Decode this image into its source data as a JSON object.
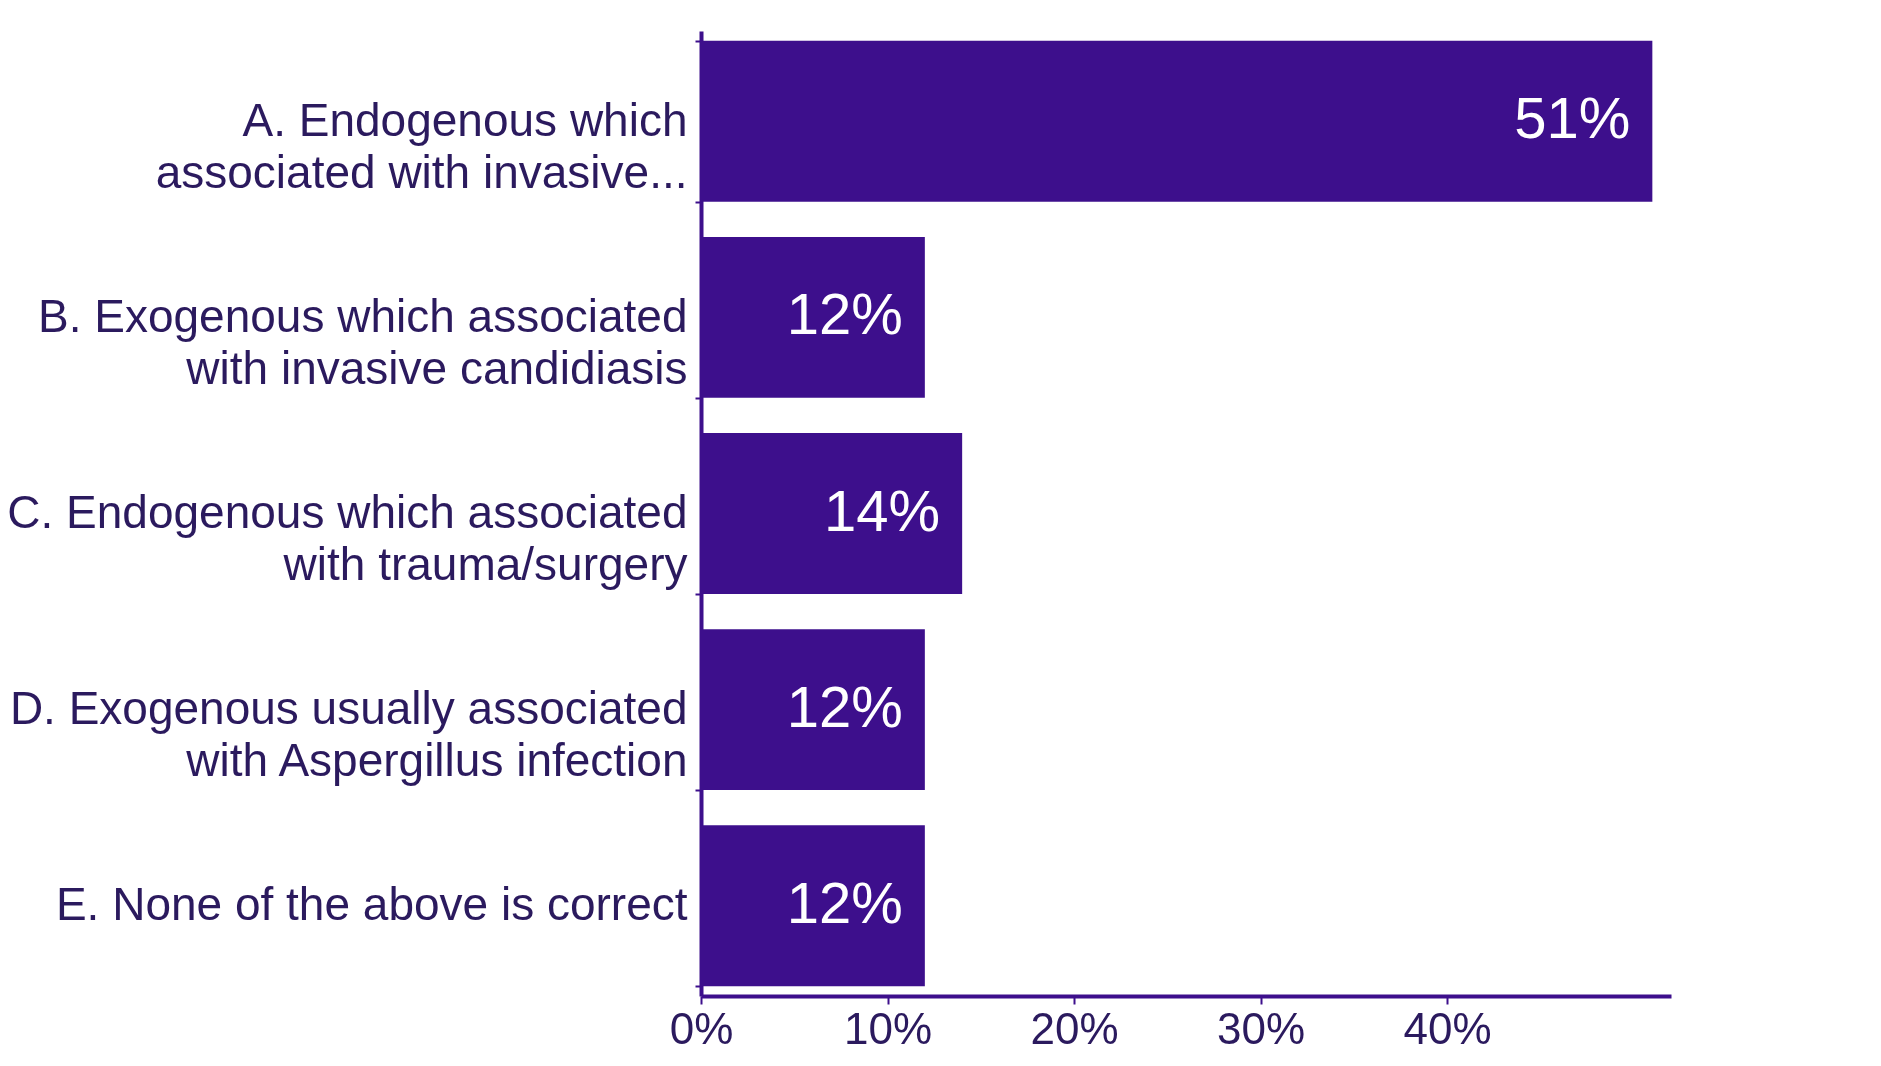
{
  "chart_data": {
    "type": "bar",
    "orientation": "horizontal",
    "categories": [
      "A. Endogenous which associated with invasive...",
      "B. Exogenous which associated with invasive candidiasis",
      "C. Endogenous which associated with trauma/surgery",
      "D. Exogenous usually associated with Aspergillus infection",
      "E. None of the above is correct"
    ],
    "values": [
      51,
      12,
      14,
      12,
      12
    ],
    "value_labels": [
      "51%",
      "12%",
      "14%",
      "12%",
      "12%"
    ],
    "color": "#3d0f8c",
    "xlim": [
      0,
      52
    ],
    "xticks": [
      {
        "value": 0,
        "label": "0%"
      },
      {
        "value": 10,
        "label": "10%"
      },
      {
        "value": 20,
        "label": "20%"
      },
      {
        "value": 30,
        "label": "30%"
      },
      {
        "value": 40,
        "label": "40%"
      }
    ],
    "grid": false
  }
}
